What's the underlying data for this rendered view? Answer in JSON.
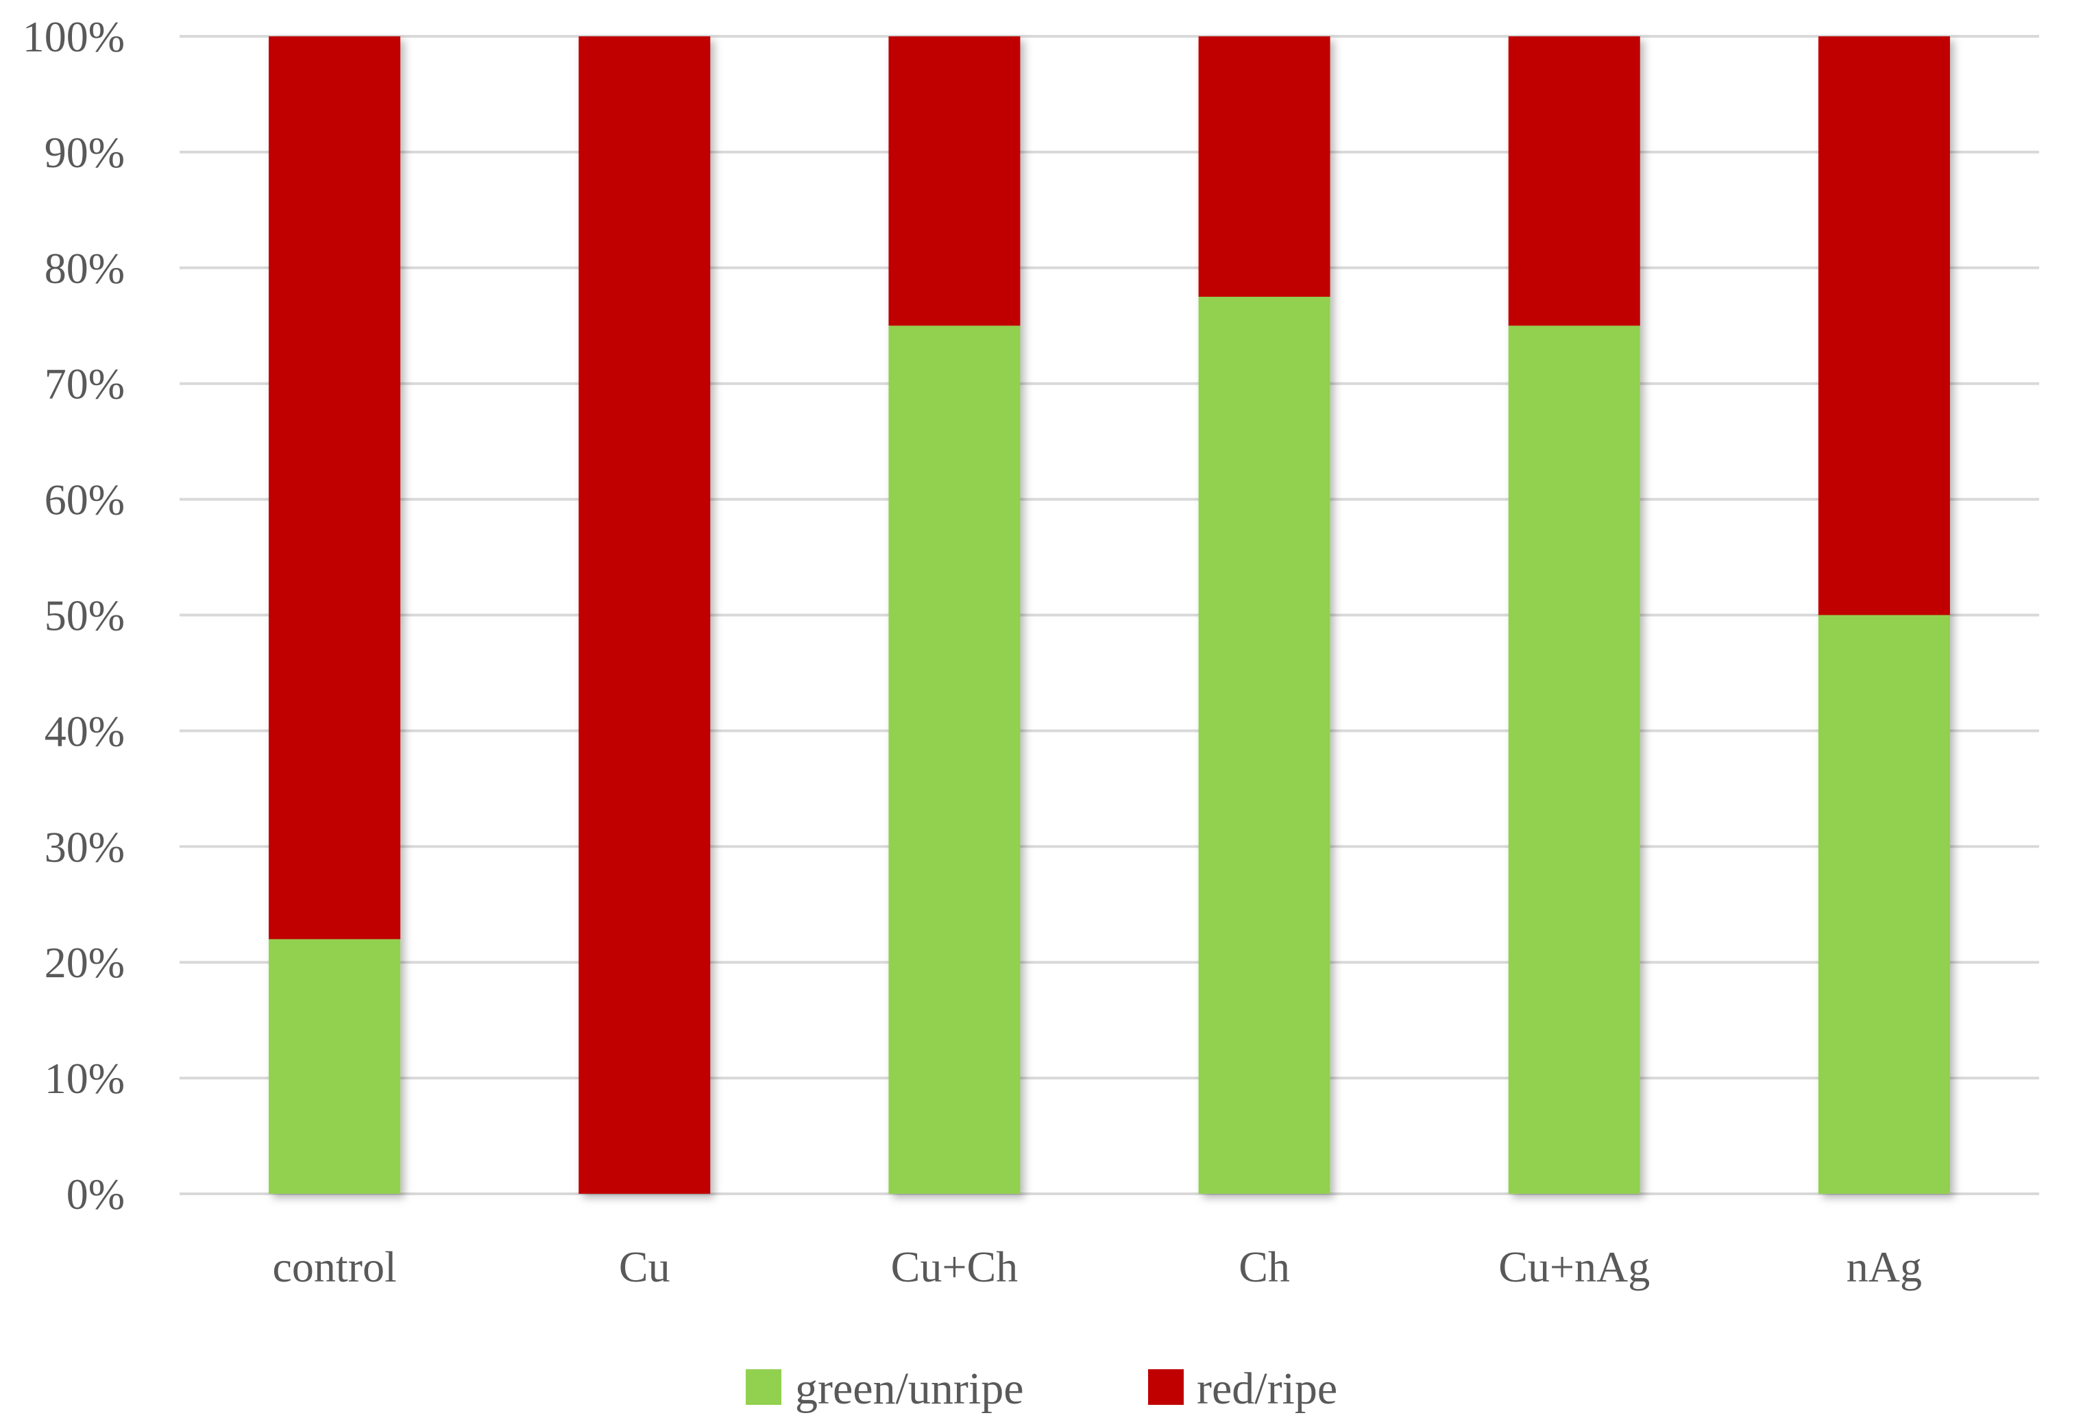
{
  "chart_data": {
    "type": "bar",
    "stacked": true,
    "normalized_percent": true,
    "title": "",
    "xlabel": "",
    "ylabel": "",
    "ylim": [
      0,
      100
    ],
    "y_ticks": [
      0,
      10,
      20,
      30,
      40,
      50,
      60,
      70,
      80,
      90,
      100
    ],
    "y_tick_format": "{v}%",
    "grid": "horizontal",
    "legend_position": "bottom-center",
    "categories": [
      "control",
      "Cu",
      "Cu+Ch",
      "Ch",
      "Cu+nAg",
      "nAg"
    ],
    "series": [
      {
        "name": "green/unripe",
        "color": "#92d050",
        "values": [
          22,
          0,
          75,
          77.5,
          75,
          50
        ]
      },
      {
        "name": "red/ripe",
        "color": "#c00000",
        "values": [
          78,
          100,
          25,
          22.5,
          25,
          50
        ]
      }
    ],
    "grid_color": "#d9d9d9",
    "text_color": "#595959"
  }
}
